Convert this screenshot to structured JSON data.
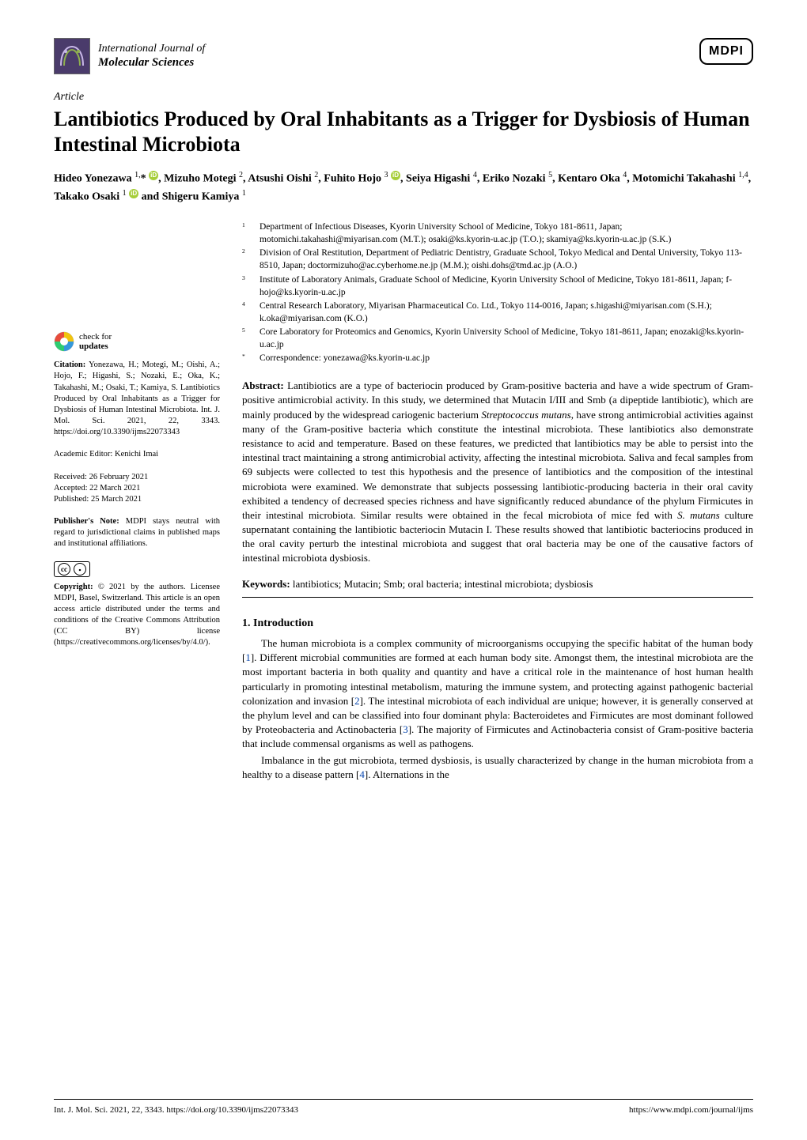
{
  "journal": {
    "line1": "International Journal of",
    "line2": "Molecular Sciences",
    "publisher_logo_text": "MDPI"
  },
  "article": {
    "type": "Article",
    "title": "Lantibiotics Produced by Oral Inhabitants as a Trigger for Dysbiosis of Human Intestinal Microbiota",
    "authors_html": "Hideo Yonezawa <sup>1,</sup>* <span class='orcid'>iD</span>, Mizuho Motegi <sup>2</sup>, Atsushi Oishi <sup>2</sup>, Fuhito Hojo <sup>3</sup> <span class='orcid'>iD</span>, Seiya Higashi <sup>4</sup>, Eriko Nozaki <sup>5</sup>, Kentaro Oka <sup>4</sup>, Motomichi Takahashi <sup>1,4</sup>, Takako Osaki <sup>1</sup> <span class='orcid'>iD</span> and Shigeru Kamiya <sup>1</sup>"
  },
  "affiliations": [
    {
      "num": "1",
      "text": "Department of Infectious Diseases, Kyorin University School of Medicine, Tokyo 181-8611, Japan; motomichi.takahashi@miyarisan.com (M.T.); osaki@ks.kyorin-u.ac.jp (T.O.); skamiya@ks.kyorin-u.ac.jp (S.K.)"
    },
    {
      "num": "2",
      "text": "Division of Oral Restitution, Department of Pediatric Dentistry, Graduate School, Tokyo Medical and Dental University, Tokyo 113-8510, Japan; doctormizuho@ac.cyberhome.ne.jp (M.M.); oishi.dohs@tmd.ac.jp (A.O.)"
    },
    {
      "num": "3",
      "text": "Institute of Laboratory Animals, Graduate School of Medicine, Kyorin University School of Medicine, Tokyo 181-8611, Japan; f-hojo@ks.kyorin-u.ac.jp"
    },
    {
      "num": "4",
      "text": "Central Research Laboratory, Miyarisan Pharmaceutical Co. Ltd., Tokyo 114-0016, Japan; s.higashi@miyarisan.com (S.H.); k.oka@miyarisan.com (K.O.)"
    },
    {
      "num": "5",
      "text": "Core Laboratory for Proteomics and Genomics, Kyorin University School of Medicine, Tokyo 181-8611, Japan; enozaki@ks.kyorin-u.ac.jp"
    },
    {
      "num": "*",
      "text": "Correspondence: yonezawa@ks.kyorin-u.ac.jp"
    }
  ],
  "abstract": {
    "label": "Abstract:",
    "text": "Lantibiotics are a type of bacteriocin produced by Gram-positive bacteria and have a wide spectrum of Gram-positive antimicrobial activity. In this study, we determined that Mutacin I/III and Smb (a dipeptide lantibiotic), which are mainly produced by the widespread cariogenic bacterium Streptococcus mutans, have strong antimicrobial activities against many of the Gram-positive bacteria which constitute the intestinal microbiota. These lantibiotics also demonstrate resistance to acid and temperature. Based on these features, we predicted that lantibiotics may be able to persist into the intestinal tract maintaining a strong antimicrobial activity, affecting the intestinal microbiota. Saliva and fecal samples from 69 subjects were collected to test this hypothesis and the presence of lantibiotics and the composition of the intestinal microbiota were examined. We demonstrate that subjects possessing lantibiotic-producing bacteria in their oral cavity exhibited a tendency of decreased species richness and have significantly reduced abundance of the phylum Firmicutes in their intestinal microbiota. Similar results were obtained in the fecal microbiota of mice fed with S. mutans culture supernatant containing the lantibiotic bacteriocin Mutacin I. These results showed that lantibiotic bacteriocins produced in the oral cavity perturb the intestinal microbiota and suggest that oral bacteria may be one of the causative factors of intestinal microbiota dysbiosis."
  },
  "keywords": {
    "label": "Keywords:",
    "text": "lantibiotics; Mutacin; Smb; oral bacteria; intestinal microbiota; dysbiosis"
  },
  "section1": {
    "heading": "1. Introduction",
    "para1_pre": "The human microbiota is a complex community of microorganisms occupying the specific habitat of the human body [",
    "ref1": "1",
    "para1_mid1": "]. Different microbial communities are formed at each human body site. Amongst them, the intestinal microbiota are the most important bacteria in both quality and quantity and have a critical role in the maintenance of host human health particularly in promoting intestinal metabolism, maturing the immune system, and protecting against pathogenic bacterial colonization and invasion [",
    "ref2": "2",
    "para1_mid2": "]. The intestinal microbiota of each individual are unique; however, it is generally conserved at the phylum level and can be classified into four dominant phyla: Bacteroidetes and Firmicutes are most dominant followed by Proteobacteria and Actinobacteria [",
    "ref3": "3",
    "para1_end": "]. The majority of Firmicutes and Actinobacteria consist of Gram-positive bacteria that include commensal organisms as well as pathogens.",
    "para2_pre": "Imbalance in the gut microbiota, termed dysbiosis, is usually characterized by change in the human microbiota from a healthy to a disease pattern [",
    "ref4": "4",
    "para2_end": "]. Alternations in the"
  },
  "sidebar": {
    "check_updates_line1": "check for",
    "check_updates_line2": "updates",
    "citation_label": "Citation:",
    "citation_text": "Yonezawa, H.; Motegi, M.; Oishi, A.; Hojo, F.; Higashi, S.; Nozaki, E.; Oka, K.; Takahashi, M.; Osaki, T.; Kamiya, S. Lantibiotics Produced by Oral Inhabitants as a Trigger for Dysbiosis of Human Intestinal Microbiota. Int. J. Mol. Sci. 2021, 22, 3343. https://doi.org/10.3390/ijms22073343",
    "editor_label": "Academic Editor:",
    "editor_name": "Kenichi Imai",
    "received": "Received: 26 February 2021",
    "accepted": "Accepted: 22 March 2021",
    "published": "Published: 25 March 2021",
    "pubnote_label": "Publisher's Note:",
    "pubnote_text": "MDPI stays neutral with regard to jurisdictional claims in published maps and institutional affiliations.",
    "copyright_label": "Copyright:",
    "copyright_text": "© 2021 by the authors. Licensee MDPI, Basel, Switzerland. This article is an open access article distributed under the terms and conditions of the Creative Commons Attribution (CC BY) license (https://creativecommons.org/licenses/by/4.0/)."
  },
  "footer": {
    "left": "Int. J. Mol. Sci. 2021, 22, 3343. https://doi.org/10.3390/ijms22073343",
    "right": "https://www.mdpi.com/journal/ijms"
  },
  "colors": {
    "orcid_bg": "#A6CE39",
    "ref_link": "#0645AD",
    "logo_purple": "#4a3b6b",
    "logo_green": "#8fb04e",
    "crossmark_colors": [
      "#e74c3c",
      "#f1c40f",
      "#3498db",
      "#2ecc71"
    ]
  }
}
